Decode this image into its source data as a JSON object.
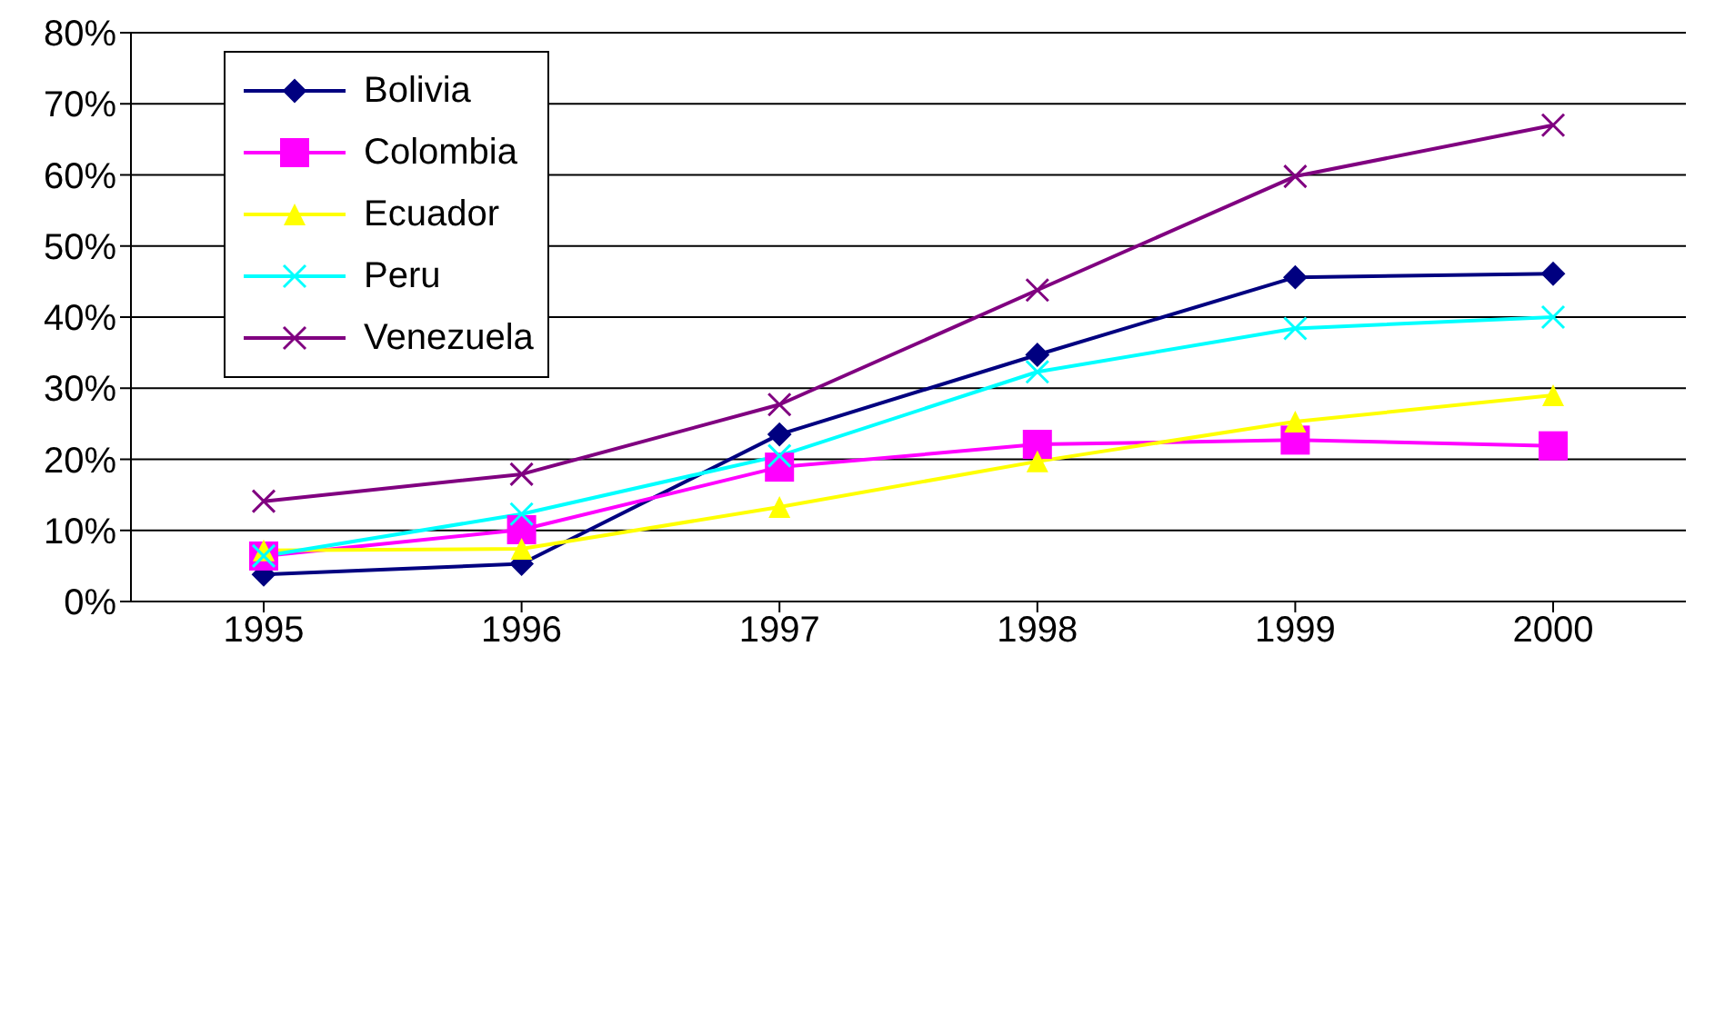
{
  "chart_data": {
    "type": "line",
    "categories": [
      "1995",
      "1996",
      "1997",
      "1998",
      "1999",
      "2000"
    ],
    "series": [
      {
        "name": "Bolivia",
        "color": "#000080",
        "marker": "diamond",
        "values": [
          3.8,
          5.3,
          23.5,
          34.7,
          45.6,
          46.1
        ]
      },
      {
        "name": "Colombia",
        "color": "#ff00ff",
        "marker": "square",
        "values": [
          6.4,
          10.1,
          18.9,
          22.1,
          22.7,
          21.9
        ]
      },
      {
        "name": "Ecuador",
        "color": "#ffff00",
        "marker": "triangle",
        "values": [
          7.2,
          7.4,
          13.3,
          19.7,
          25.3,
          29.0
        ]
      },
      {
        "name": "Peru",
        "color": "#00ffff",
        "marker": "cross",
        "values": [
          6.4,
          12.3,
          20.5,
          32.3,
          38.4,
          40.0
        ]
      },
      {
        "name": "Venezuela",
        "color": "#800080",
        "marker": "cross",
        "values": [
          14.1,
          17.9,
          27.7,
          43.8,
          59.8,
          67.0
        ]
      }
    ],
    "ylim": [
      0,
      80
    ],
    "yticks": [
      {
        "value": 0,
        "label": "0%"
      },
      {
        "value": 10,
        "label": "10%"
      },
      {
        "value": 20,
        "label": "20%"
      },
      {
        "value": 30,
        "label": "30%"
      },
      {
        "value": 40,
        "label": "40%"
      },
      {
        "value": 50,
        "label": "50%"
      },
      {
        "value": 60,
        "label": "60%"
      },
      {
        "value": 70,
        "label": "70%"
      },
      {
        "value": 80,
        "label": "80%"
      }
    ],
    "grid": "y",
    "legend": "top left",
    "line_style": "solid"
  }
}
